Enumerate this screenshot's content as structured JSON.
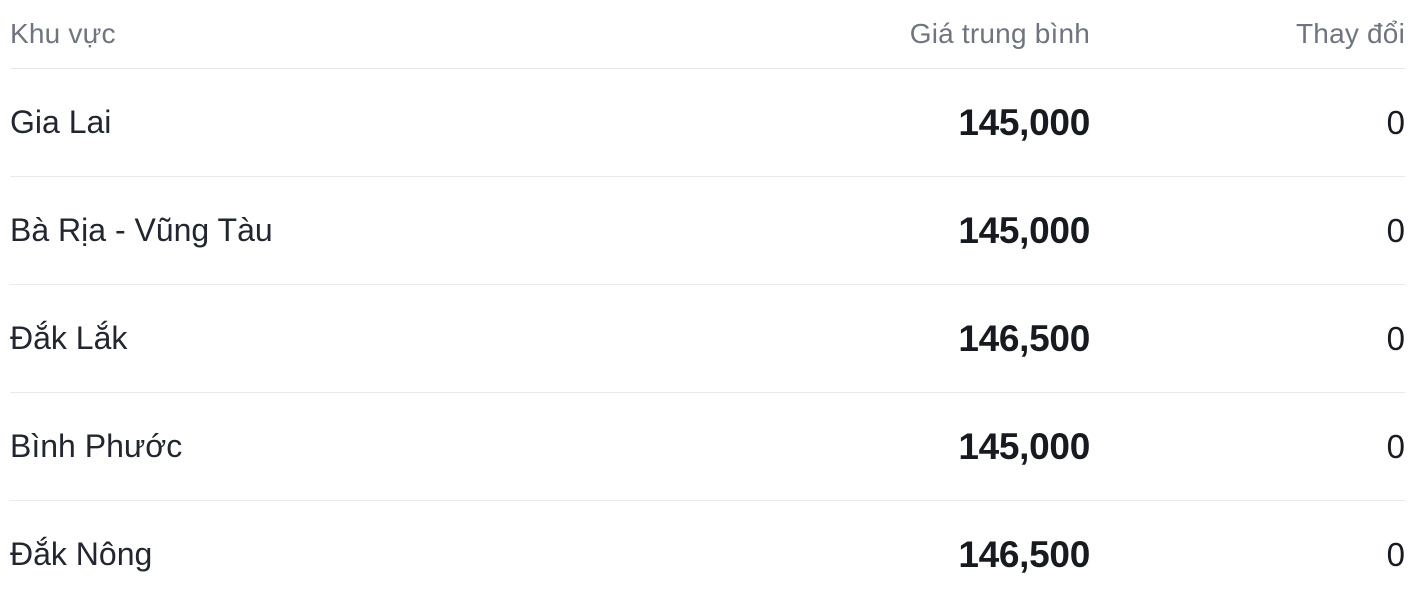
{
  "table": {
    "header": {
      "region": "Khu vực",
      "price": "Giá trung bình",
      "change": "Thay đổi"
    },
    "rows": [
      {
        "region": "Gia Lai",
        "price": "145,000",
        "change": "0"
      },
      {
        "region": "Bà Rịa - Vũng Tàu",
        "price": "145,000",
        "change": "0"
      },
      {
        "region": "Đắk Lắk",
        "price": "146,500",
        "change": "0"
      },
      {
        "region": "Bình Phước",
        "price": "145,000",
        "change": "0"
      },
      {
        "region": "Đắk Nông",
        "price": "146,500",
        "change": "0"
      }
    ],
    "colors": {
      "header_text": "#6e7480",
      "region_text": "#212631",
      "value_text": "#171a20",
      "divider": "#e9eaed",
      "background": "#ffffff"
    }
  }
}
